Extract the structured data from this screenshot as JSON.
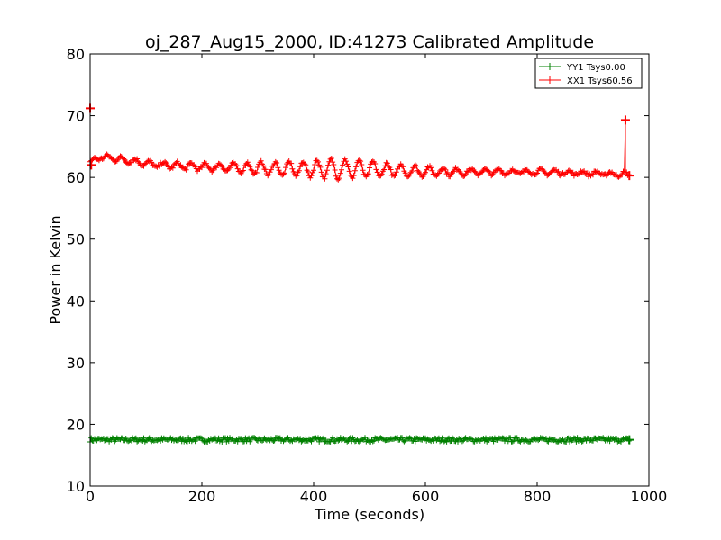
{
  "chart_data": {
    "type": "line",
    "title": "oj_287_Aug15_2000, ID:41273 Calibrated Amplitude",
    "xlabel": "Time (seconds)",
    "ylabel": "Power in Kelvin",
    "xlim": [
      0,
      1000
    ],
    "ylim": [
      10,
      80
    ],
    "xticks": [
      0,
      200,
      400,
      600,
      800,
      1000
    ],
    "yticks": [
      10,
      20,
      30,
      40,
      50,
      60,
      70,
      80
    ],
    "xtick_labels": [
      "0",
      "200",
      "400",
      "600",
      "800",
      "1000"
    ],
    "ytick_labels": [
      "10",
      "20",
      "30",
      "40",
      "50",
      "60",
      "70",
      "80"
    ],
    "marker": "+",
    "grid": false,
    "legend_position": "top-right",
    "series": [
      {
        "name": "YY1 Tsys0.00",
        "color": "#008000",
        "x_range": [
          0,
          965
        ],
        "x_step": 2,
        "y_mean": 17.5,
        "y_noise": 0.35,
        "end_points": [
          [
            965,
            17.5
          ]
        ]
      },
      {
        "name": "XX1 Tsys60.56",
        "color": "#ff0000",
        "x_range": [
          0,
          965
        ],
        "x_step": 2,
        "baseline": [
          [
            0,
            62.5
          ],
          [
            20,
            63.3
          ],
          [
            50,
            63.0
          ],
          [
            80,
            62.6
          ],
          [
            110,
            62.1
          ],
          [
            150,
            61.9
          ],
          [
            200,
            61.7
          ],
          [
            260,
            61.6
          ],
          [
            320,
            61.4
          ],
          [
            400,
            61.4
          ],
          [
            480,
            61.4
          ],
          [
            560,
            61.1
          ],
          [
            640,
            60.9
          ],
          [
            720,
            60.9
          ],
          [
            800,
            60.9
          ],
          [
            880,
            60.7
          ],
          [
            950,
            60.5
          ]
        ],
        "oscillation": {
          "period": 25,
          "amplitude": [
            [
              0,
              0.3
            ],
            [
              250,
              0.6
            ],
            [
              300,
              1.0
            ],
            [
              380,
              1.2
            ],
            [
              440,
              1.6
            ],
            [
              500,
              1.3
            ],
            [
              560,
              0.9
            ],
            [
              640,
              0.6
            ],
            [
              700,
              0.4
            ],
            [
              965,
              0.3
            ]
          ]
        },
        "spikes": [
          [
            0,
            71.2
          ],
          [
            958,
            69.3
          ]
        ],
        "end_points": [
          [
            2,
            62.0
          ],
          [
            965,
            60.3
          ]
        ]
      }
    ]
  }
}
